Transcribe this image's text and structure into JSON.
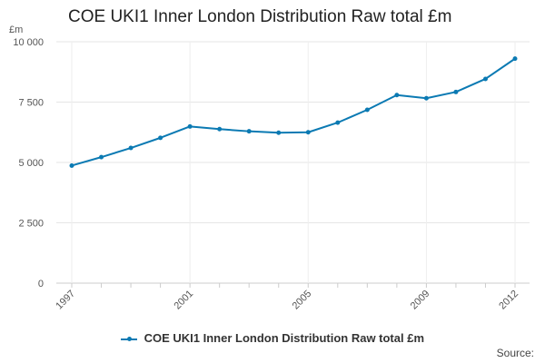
{
  "chart_data": {
    "type": "line",
    "title": "COE UKI1 Inner London Distribution Raw total £m",
    "y_unit": "£m",
    "xlabel": "",
    "ylabel": "",
    "x_tick_labels": [
      "1997",
      "2001",
      "2005",
      "2009",
      "2012"
    ],
    "y_tick_labels": [
      "0",
      "2 500",
      "5 000",
      "7 500",
      "10 000"
    ],
    "ylim": [
      0,
      10000
    ],
    "xlim": [
      1997,
      2012
    ],
    "grid": true,
    "legend_placement": "bottom",
    "series": [
      {
        "name": "COE UKI1 Inner London Distribution Raw total £m",
        "color": "#0b7ab3",
        "x": [
          1997,
          1998,
          1999,
          2000,
          2001,
          2002,
          2003,
          2004,
          2005,
          2006,
          2007,
          2008,
          2009,
          2010,
          2011,
          2012
        ],
        "values": [
          4870,
          5220,
          5600,
          6020,
          6490,
          6380,
          6290,
          6230,
          6250,
          6650,
          7180,
          7790,
          7660,
          7920,
          8460,
          9300
        ]
      }
    ],
    "source_label": "Source:"
  }
}
